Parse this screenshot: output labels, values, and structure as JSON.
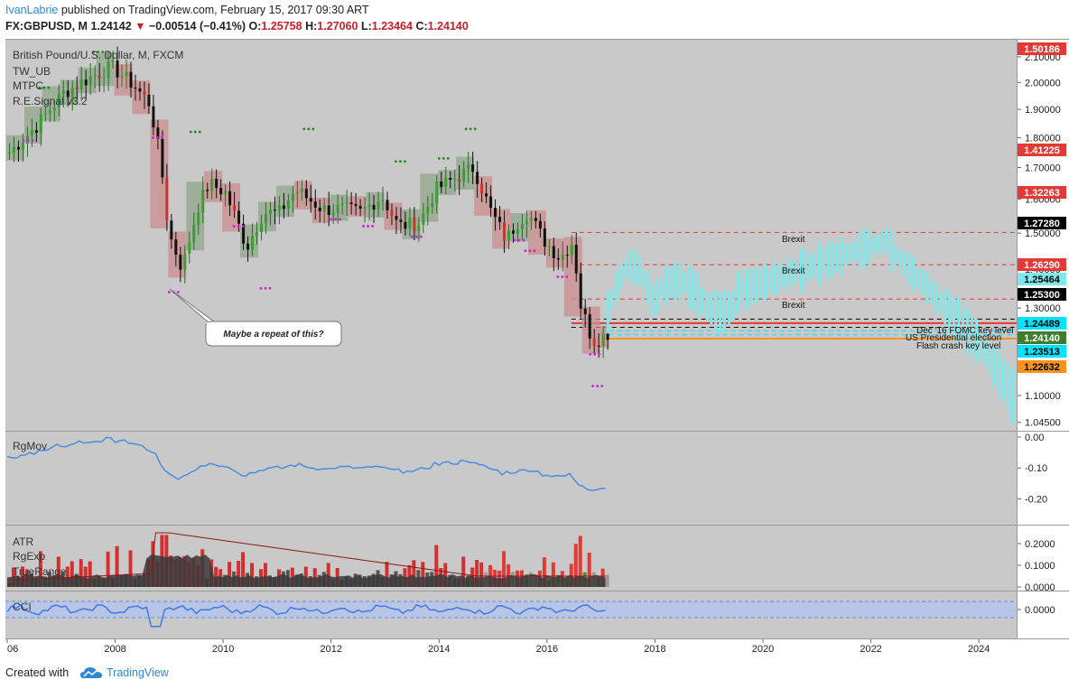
{
  "header": {
    "author": "IvanLabrie",
    "published_text": "published on TradingView.com, February 15, 2017 09:30 ART",
    "symbol": "FX:GBPUSD, M",
    "last": "1.24142",
    "change": "−0.00514 (−0.41%)",
    "o_label": "O:",
    "o_value": "1.25758",
    "h_label": "H:",
    "h_value": "1.27060",
    "l_label": "L:",
    "l_value": "1.23464",
    "c_label": "C:",
    "c_value": "1.24140"
  },
  "main_pane": {
    "title": "British Pound/U.S. Dollar, M, FXCM",
    "indicators": [
      "TW_UB",
      "MTPC",
      "R.E.Signal v3.2"
    ]
  },
  "annotations": {
    "brexit_1": "Brexit",
    "brexit_2": "Brexit",
    "brexit_3": "Brexit",
    "fomc": "Dec '16 FOMC key level",
    "election": "US Presidential election",
    "flash": "Flash crash key level",
    "callout": "Maybe a repeat of this?"
  },
  "price_axis": {
    "ticks": [
      "2.10000",
      "2.00000",
      "1.90000",
      "1.80000",
      "1.70000",
      "1.60000",
      "1.50000",
      "1.40000",
      "1.30000",
      "1.20000",
      "1.10000",
      "1.04500"
    ],
    "badges": [
      {
        "text": "1.50186",
        "bg": "#e53935",
        "fg": "#ffffff"
      },
      {
        "text": "1.41225",
        "bg": "#e53935",
        "fg": "#ffffff"
      },
      {
        "text": "1.32263",
        "bg": "#e53935",
        "fg": "#ffffff"
      },
      {
        "text": "1.27280",
        "bg": "#000000",
        "fg": "#ffffff"
      },
      {
        "text": "1.26290",
        "bg": "#e53935",
        "fg": "#ffffff"
      },
      {
        "text": "1.25464",
        "bg": "#7ee8ea",
        "fg": "#000000"
      },
      {
        "text": "1.25300",
        "bg": "#000000",
        "fg": "#ffffff"
      },
      {
        "text": "1.24489",
        "bg": "#00e5ff",
        "fg": "#000000"
      },
      {
        "text": "1.24140",
        "bg": "#3e7d2f",
        "fg": "#ffffff"
      },
      {
        "text": "1.23513",
        "bg": "#00e5ff",
        "fg": "#000000"
      },
      {
        "text": "1.22632",
        "bg": "#f7941d",
        "fg": "#000000"
      }
    ]
  },
  "rgmov_pane": {
    "label": "RgMov",
    "ticks": [
      "0.00",
      "-0.10",
      "-0.20"
    ]
  },
  "atr_pane": {
    "labels": [
      "ATR",
      "RgExp",
      "TrueRange"
    ],
    "ticks": [
      "0.2000",
      "0.1000",
      "0.0000"
    ]
  },
  "cci_pane": {
    "label": "CCI",
    "ticks": [
      "0.0000"
    ]
  },
  "time_axis": {
    "labels": [
      "06",
      "2008",
      "2010",
      "2012",
      "2014",
      "2016",
      "2018",
      "2020",
      "2022",
      "2024"
    ]
  },
  "footer": {
    "created_with": "Created with",
    "brand": "TradingView"
  },
  "colors": {
    "chart_bg": "#c9c9c9",
    "up_box": "#8fa68a",
    "down_box": "#cc8c8c",
    "projection": "#7ee8ea",
    "rgmov_line": "#4a8de0",
    "rgexp_line": "#8b1a1a",
    "cci_line": "#3f7be0",
    "cci_band": "#b9c5e6",
    "level_red": "#e53935",
    "level_orange": "#f7941d",
    "level_cyan": "#00e5ff"
  },
  "chart_data": {
    "type": "candlestick",
    "title": "British Pound/U.S. Dollar, M, FXCM",
    "x_range": [
      2006,
      2024.7
    ],
    "y_range": [
      1.02,
      2.16
    ],
    "y_scale": "log",
    "monthly_close_keypoints": [
      [
        2006.0,
        1.75
      ],
      [
        2006.5,
        1.84
      ],
      [
        2007.0,
        1.96
      ],
      [
        2007.5,
        2.02
      ],
      [
        2007.9,
        2.06
      ],
      [
        2008.3,
        1.99
      ],
      [
        2008.6,
        1.92
      ],
      [
        2008.8,
        1.72
      ],
      [
        2008.95,
        1.5
      ],
      [
        2009.2,
        1.4
      ],
      [
        2009.5,
        1.58
      ],
      [
        2009.7,
        1.65
      ],
      [
        2010.0,
        1.62
      ],
      [
        2010.4,
        1.46
      ],
      [
        2010.7,
        1.56
      ],
      [
        2011.0,
        1.56
      ],
      [
        2011.3,
        1.63
      ],
      [
        2011.8,
        1.57
      ],
      [
        2012.2,
        1.57
      ],
      [
        2012.5,
        1.56
      ],
      [
        2012.9,
        1.61
      ],
      [
        2013.2,
        1.52
      ],
      [
        2013.6,
        1.53
      ],
      [
        2013.9,
        1.63
      ],
      [
        2014.3,
        1.67
      ],
      [
        2014.6,
        1.7
      ],
      [
        2014.9,
        1.57
      ],
      [
        2015.2,
        1.48
      ],
      [
        2015.4,
        1.53
      ],
      [
        2015.6,
        1.56
      ],
      [
        2015.9,
        1.48
      ],
      [
        2016.2,
        1.43
      ],
      [
        2016.45,
        1.48
      ],
      [
        2016.55,
        1.32
      ],
      [
        2016.8,
        1.22
      ],
      [
        2017.1,
        1.24
      ]
    ],
    "projection_range": [
      2017.1,
      2024.6
    ],
    "key_levels": [
      {
        "label": "Brexit",
        "value": 1.50186,
        "style": "dashed",
        "color": "#e53935"
      },
      {
        "label": "Brexit",
        "value": 1.41225,
        "style": "dashed",
        "color": "#e53935"
      },
      {
        "label": "Brexit",
        "value": 1.32263,
        "style": "dashed",
        "color": "#e53935"
      },
      {
        "label": "",
        "value": 1.2629,
        "style": "solid",
        "color": "#e53935"
      },
      {
        "label": "Dec '16 FOMC key level",
        "value": 1.2728,
        "style": "dashed",
        "color": "#000000"
      },
      {
        "label": "US Presidential election",
        "value": 1.253,
        "style": "dashed",
        "color": "#000000"
      },
      {
        "label": "Flash crash key level",
        "value": 1.22632,
        "style": "solid",
        "color": "#f7941d"
      },
      {
        "label": "",
        "value": 1.24489,
        "style": "dashed",
        "color": "#00e5ff"
      },
      {
        "label": "",
        "value": 1.23513,
        "style": "dashed",
        "color": "#00e5ff"
      }
    ],
    "rgmov": {
      "y_range": [
        -0.25,
        0.01
      ]
    },
    "atr": {
      "y_range": [
        0.0,
        0.25
      ]
    },
    "cci": {
      "zero_band": [
        -120,
        120
      ]
    }
  }
}
